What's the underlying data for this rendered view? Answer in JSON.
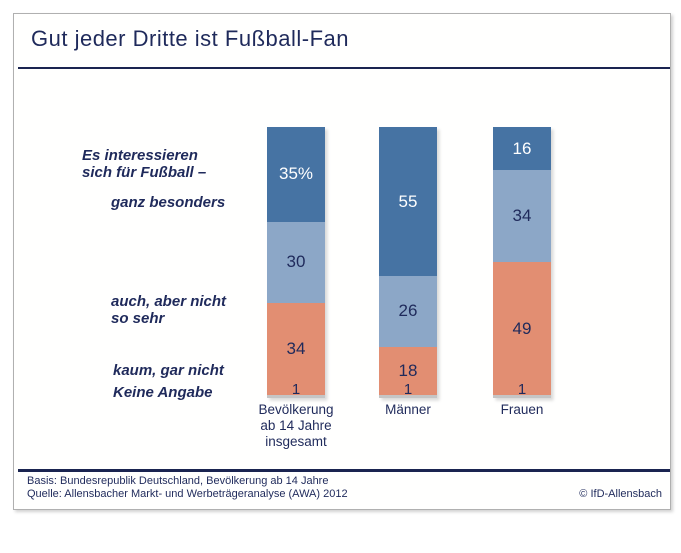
{
  "title": "Gut jeder Dritte ist Fußball-Fan",
  "colors": {
    "navy": "#1f2a5b",
    "dark_blue": "#4673a3",
    "light_blue": "#8ca7c7",
    "salmon": "#e28e72",
    "gray": "#c5c5c5",
    "frame_border": "#b0b0b0"
  },
  "left_labels": {
    "intro": "Es interessieren\nsich für Fußball –",
    "ganz": "ganz besonders",
    "auch": "auch, aber nicht\nso sehr",
    "kaum": "kaum, gar nicht",
    "keine": "Keine Angabe"
  },
  "chart_data": {
    "type": "bar",
    "stacked": true,
    "unit": "percent",
    "title": "Gut jeder Dritte ist Fußball-Fan",
    "ylim": [
      0,
      100
    ],
    "grid": false,
    "legend_position": "none",
    "categories": [
      "Bevölkerung\nab 14 Jahre\ninsgesamt",
      "Männer",
      "Frauen"
    ],
    "series": [
      {
        "key": "ganz-besonders",
        "name": "ganz besonders",
        "color": "#4673a3",
        "values": [
          35,
          55,
          16
        ],
        "labels": [
          "35%",
          "55",
          "16"
        ],
        "label_color": "#ffffff"
      },
      {
        "key": "auch-aber-nicht-so-sehr",
        "name": "auch, aber nicht so sehr",
        "color": "#8ca7c7",
        "values": [
          30,
          26,
          34
        ],
        "labels": [
          "30",
          "26",
          "34"
        ],
        "label_color": "#1f2a5b"
      },
      {
        "key": "kaum-gar-nicht",
        "name": "kaum, gar nicht",
        "color": "#e28e72",
        "values": [
          34,
          18,
          49
        ],
        "labels": [
          "34",
          "18",
          "49"
        ],
        "label_color": "#1f2a5b"
      },
      {
        "key": "keine-angabe",
        "name": "Keine Angabe",
        "color": "#c5c5c5",
        "values": [
          1,
          1,
          1
        ],
        "labels": [
          "1",
          "1",
          "1"
        ],
        "label_color": "#1f2a5b"
      }
    ]
  },
  "footer": {
    "basis": "Basis: Bundesrepublik Deutschland, Bevölkerung ab 14 Jahre",
    "quelle": "Quelle: Allensbacher Markt- und Werbeträgeranalyse (AWA) 2012",
    "copyright": "© IfD-Allensbach"
  }
}
